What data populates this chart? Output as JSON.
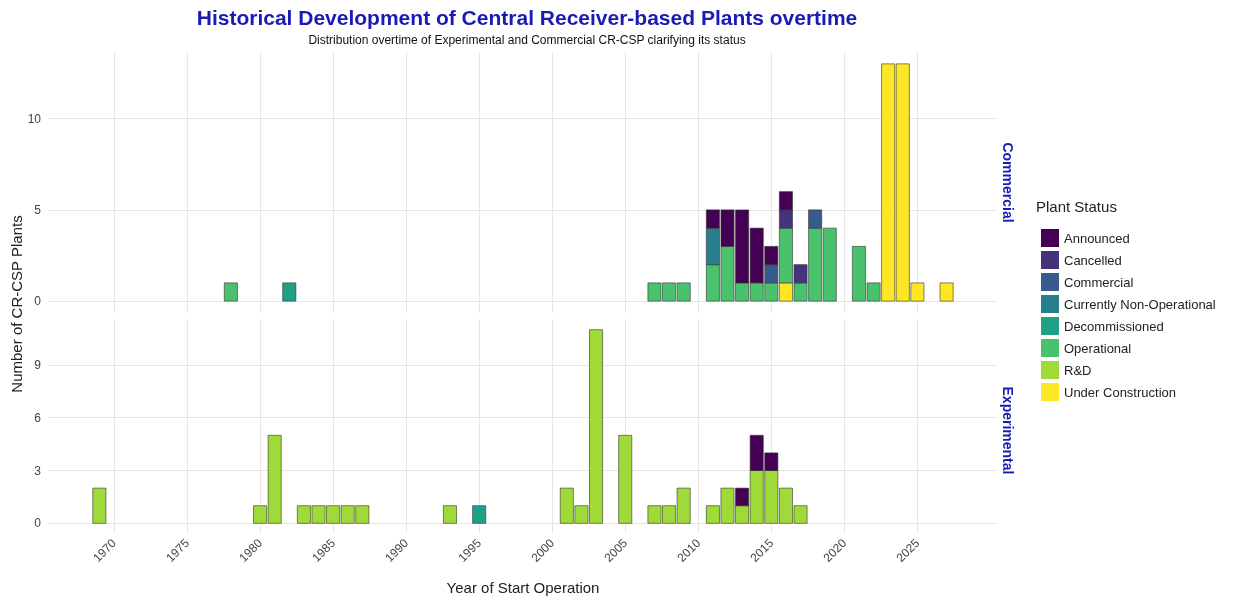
{
  "chart_data": [
    {
      "type": "bar",
      "title": "Historical Development of Central Receiver-based Plants overtime",
      "subtitle": "Distribution overtime of Experimental and Commercial CR-CSP clarifying its status",
      "ylabel": "Number of CR-CSP Plants",
      "legend_title": "Plant Status",
      "annotations": [
        "Commercial"
      ],
      "stacked": true,
      "grid": true,
      "legend": "right",
      "tick_labels": "y",
      "xlim": [
        1965.55,
        2030.45
      ],
      "xticks": [
        1970,
        1975,
        1980,
        1985,
        1990,
        1995,
        2000,
        2005,
        2010,
        2015,
        2020,
        2025
      ],
      "ylim": [
        -0.65,
        13.65
      ],
      "yticks": [
        0,
        5,
        10
      ],
      "x": [
        1978,
        1982,
        2007,
        2008,
        2009,
        2011,
        2012,
        2013,
        2014,
        2015,
        2016,
        2017,
        2018,
        2019,
        2021,
        2022,
        2023,
        2024,
        2025,
        2027
      ],
      "series": [
        {
          "name": "Under Construction",
          "color": "#fde725",
          "values": [
            null,
            null,
            null,
            null,
            null,
            null,
            null,
            null,
            null,
            null,
            1,
            null,
            null,
            null,
            null,
            null,
            13,
            13,
            1,
            1
          ]
        },
        {
          "name": "R&D",
          "color": "#a0da39",
          "values": [
            null,
            null,
            null,
            null,
            null,
            null,
            null,
            null,
            null,
            null,
            null,
            null,
            null,
            null,
            null,
            null,
            null,
            null,
            null,
            null
          ]
        },
        {
          "name": "Operational",
          "color": "#4ac16d",
          "values": [
            1,
            null,
            1,
            1,
            1,
            2,
            3,
            1,
            1,
            1,
            3,
            1,
            4,
            4,
            3,
            1,
            null,
            null,
            null,
            null
          ]
        },
        {
          "name": "Decommissioned",
          "color": "#1fa187",
          "values": [
            null,
            1,
            null,
            null,
            null,
            null,
            null,
            null,
            null,
            null,
            null,
            null,
            null,
            null,
            null,
            null,
            null,
            null,
            null,
            null
          ]
        },
        {
          "name": "Currently Non-Operational",
          "color": "#277f8e",
          "values": [
            null,
            null,
            null,
            null,
            null,
            2,
            null,
            null,
            null,
            null,
            null,
            null,
            null,
            null,
            null,
            null,
            null,
            null,
            null,
            null
          ]
        },
        {
          "name": "Commercial",
          "color": "#365c8d",
          "values": [
            null,
            null,
            null,
            null,
            null,
            null,
            null,
            null,
            null,
            1,
            null,
            null,
            1,
            null,
            null,
            null,
            null,
            null,
            null,
            null
          ]
        },
        {
          "name": "Cancelled",
          "color": "#46337e",
          "values": [
            null,
            null,
            null,
            null,
            null,
            null,
            null,
            null,
            null,
            null,
            1,
            1,
            null,
            null,
            null,
            null,
            null,
            null,
            null,
            null
          ]
        },
        {
          "name": "Announced",
          "color": "#440154",
          "values": [
            null,
            null,
            null,
            null,
            null,
            1,
            2,
            4,
            3,
            1,
            1,
            null,
            null,
            null,
            null,
            null,
            null,
            null,
            null,
            null
          ]
        }
      ]
    },
    {
      "type": "bar",
      "xlabel": "Year of Start Operation",
      "annotations": [
        "Experimental"
      ],
      "stacked": true,
      "grid": true,
      "xlim": [
        1965.55,
        2030.45
      ],
      "xticks": [
        1970,
        1975,
        1980,
        1985,
        1990,
        1995,
        2000,
        2005,
        2010,
        2015,
        2020,
        2025
      ],
      "ylim": [
        -0.55,
        11.55
      ],
      "yticks": [
        0,
        3,
        6,
        9
      ],
      "x": [
        1969,
        1980,
        1981,
        1983,
        1984,
        1985,
        1986,
        1987,
        1993,
        1995,
        2001,
        2002,
        2003,
        2005,
        2007,
        2008,
        2009,
        2011,
        2012,
        2013,
        2014,
        2015,
        2016,
        2017
      ],
      "series": [
        {
          "color": "#a0da39",
          "values": [
            2,
            1,
            5,
            1,
            1,
            1,
            1,
            1,
            1,
            null,
            2,
            1,
            11,
            5,
            1,
            1,
            2,
            1,
            2,
            1,
            3,
            3,
            2,
            1
          ]
        },
        {
          "color": "#1fa187",
          "values": [
            null,
            null,
            null,
            null,
            null,
            null,
            null,
            null,
            null,
            1,
            null,
            null,
            null,
            null,
            null,
            null,
            null,
            null,
            null,
            null,
            null,
            null,
            null,
            null
          ]
        },
        {
          "color": "#440154",
          "values": [
            null,
            null,
            null,
            null,
            null,
            null,
            null,
            null,
            null,
            null,
            null,
            null,
            null,
            null,
            null,
            null,
            null,
            null,
            null,
            1,
            2,
            1,
            null,
            null
          ]
        }
      ]
    }
  ]
}
